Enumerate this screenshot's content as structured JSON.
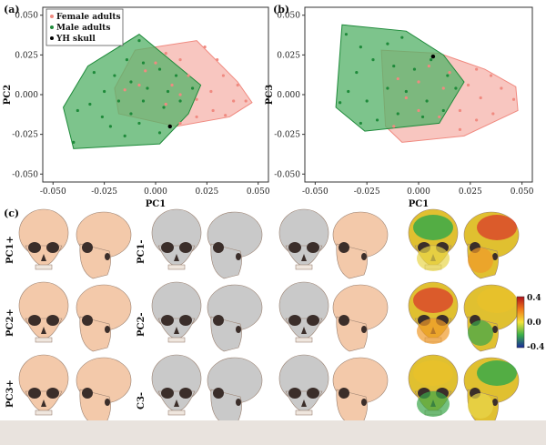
{
  "panels": {
    "a": "(a)",
    "b": "(b)",
    "c": "(c)"
  },
  "colors": {
    "female_fill": "#f6b8b0",
    "female_stroke": "#f08a80",
    "male_fill": "#58b46c",
    "male_stroke": "#1e8a3a",
    "yh": "#000000",
    "skull_peach": "#f3c9aa",
    "skull_gray": "#c9c9c9"
  },
  "chart_data": [
    {
      "type": "scatter",
      "id": "a",
      "xlabel": "PC1",
      "ylabel": "PC2",
      "xlim": [
        -0.055,
        0.055
      ],
      "ylim": [
        -0.055,
        0.055
      ],
      "xticks": [
        "-0.050",
        "-0.025",
        "0.000",
        "0.025",
        "0.050"
      ],
      "yticks": [
        "0.050",
        "0.025",
        "0.000",
        "-0.025",
        "-0.050"
      ],
      "legend": {
        "placement": "top-left",
        "entries": [
          "Female adults",
          "Male adults",
          "YH skull"
        ]
      },
      "series": [
        {
          "name": "Female adults",
          "hull": [
            [
              0.02,
              0.034
            ],
            [
              0.04,
              0.008
            ],
            [
              0.047,
              -0.005
            ],
            [
              0.036,
              -0.014
            ],
            [
              0.01,
              -0.02
            ],
            [
              -0.018,
              -0.012
            ],
            [
              -0.02,
              0.004
            ],
            [
              -0.01,
              0.028
            ]
          ],
          "points": [
            [
              0.024,
              0.03
            ],
            [
              0.03,
              0.022
            ],
            [
              0.033,
              0.012
            ],
            [
              0.04,
              0.006
            ],
            [
              0.038,
              -0.004
            ],
            [
              0.044,
              -0.004
            ],
            [
              0.028,
              -0.01
            ],
            [
              0.02,
              -0.014
            ],
            [
              0.012,
              -0.018
            ],
            [
              0.02,
              -0.003
            ],
            [
              0.027,
              0.002
            ],
            [
              0.016,
              0.012
            ],
            [
              0.012,
              0.022
            ],
            [
              0.005,
              0.026
            ],
            [
              0.0,
              0.02
            ],
            [
              -0.005,
              0.015
            ],
            [
              -0.008,
              0.006
            ],
            [
              -0.015,
              0.003
            ],
            [
              0.008,
              0.006
            ],
            [
              0.005,
              -0.006
            ],
            [
              0.012,
              0.0
            ],
            [
              0.034,
              -0.013
            ]
          ]
        },
        {
          "name": "Male adults",
          "hull": [
            [
              -0.008,
              0.038
            ],
            [
              0.022,
              0.006
            ],
            [
              0.016,
              -0.012
            ],
            [
              0.002,
              -0.031
            ],
            [
              -0.04,
              -0.034
            ],
            [
              -0.045,
              -0.008
            ],
            [
              -0.033,
              0.018
            ]
          ],
          "points": [
            [
              -0.008,
              0.034
            ],
            [
              -0.014,
              0.022
            ],
            [
              -0.006,
              0.02
            ],
            [
              0.002,
              0.016
            ],
            [
              -0.02,
              0.012
            ],
            [
              -0.012,
              0.008
            ],
            [
              -0.004,
              0.004
            ],
            [
              -0.025,
              0.002
            ],
            [
              -0.018,
              -0.004
            ],
            [
              -0.032,
              -0.006
            ],
            [
              -0.038,
              -0.01
            ],
            [
              -0.026,
              -0.014
            ],
            [
              -0.012,
              -0.012
            ],
            [
              0.004,
              -0.008
            ],
            [
              0.012,
              -0.004
            ],
            [
              0.018,
              0.004
            ],
            [
              0.01,
              0.012
            ],
            [
              -0.03,
              0.014
            ],
            [
              -0.022,
              -0.02
            ],
            [
              -0.008,
              -0.018
            ],
            [
              0.002,
              -0.024
            ],
            [
              -0.04,
              -0.03
            ],
            [
              -0.006,
              -0.004
            ],
            [
              0.006,
              0.002
            ],
            [
              -0.015,
              -0.026
            ]
          ]
        },
        {
          "name": "YH skull",
          "points": [
            [
              0.007,
              -0.02
            ]
          ]
        }
      ]
    },
    {
      "type": "scatter",
      "id": "b",
      "xlabel": "PC1",
      "ylabel": "PC3",
      "xlim": [
        -0.055,
        0.055
      ],
      "ylim": [
        -0.055,
        0.055
      ],
      "xticks": [
        "-0.050",
        "-0.025",
        "0.000",
        "0.025",
        "0.050"
      ],
      "yticks": [
        "0.050",
        "0.025",
        "0.000",
        "-0.025",
        "-0.050"
      ],
      "series": [
        {
          "name": "Female adults",
          "hull": [
            [
              -0.018,
              0.028
            ],
            [
              0.01,
              0.026
            ],
            [
              0.032,
              0.016
            ],
            [
              0.047,
              0.005
            ],
            [
              0.048,
              -0.01
            ],
            [
              0.022,
              -0.026
            ],
            [
              -0.008,
              -0.03
            ],
            [
              -0.016,
              -0.02
            ]
          ],
          "points": [
            [
              0.028,
              0.016
            ],
            [
              0.035,
              0.012
            ],
            [
              0.04,
              0.004
            ],
            [
              0.046,
              -0.003
            ],
            [
              0.03,
              -0.002
            ],
            [
              0.024,
              0.006
            ],
            [
              0.015,
              0.014
            ],
            [
              0.005,
              0.018
            ],
            [
              0.012,
              0.004
            ],
            [
              0.02,
              -0.01
            ],
            [
              0.028,
              -0.016
            ],
            [
              0.01,
              -0.014
            ],
            [
              0.0,
              -0.01
            ],
            [
              -0.006,
              -0.002
            ],
            [
              -0.01,
              0.01
            ],
            [
              0.0,
              0.008
            ],
            [
              0.02,
              -0.022
            ],
            [
              0.036,
              -0.012
            ],
            [
              -0.012,
              -0.02
            ]
          ]
        },
        {
          "name": "Male adults",
          "hull": [
            [
              -0.037,
              0.044
            ],
            [
              -0.006,
              0.04
            ],
            [
              0.012,
              0.025
            ],
            [
              0.022,
              0.008
            ],
            [
              0.01,
              -0.018
            ],
            [
              -0.026,
              -0.023
            ],
            [
              -0.04,
              -0.008
            ]
          ],
          "points": [
            [
              -0.035,
              0.038
            ],
            [
              -0.028,
              0.03
            ],
            [
              -0.015,
              0.032
            ],
            [
              -0.008,
              0.036
            ],
            [
              -0.022,
              0.022
            ],
            [
              -0.012,
              0.018
            ],
            [
              -0.002,
              0.016
            ],
            [
              0.006,
              0.022
            ],
            [
              0.014,
              0.012
            ],
            [
              0.018,
              0.004
            ],
            [
              -0.03,
              0.014
            ],
            [
              -0.034,
              0.002
            ],
            [
              -0.025,
              -0.004
            ],
            [
              -0.015,
              0.004
            ],
            [
              -0.006,
              0.002
            ],
            [
              0.004,
              -0.004
            ],
            [
              0.012,
              -0.01
            ],
            [
              -0.02,
              -0.016
            ],
            [
              -0.01,
              -0.012
            ],
            [
              -0.028,
              -0.018
            ],
            [
              0.002,
              -0.014
            ],
            [
              -0.038,
              -0.005
            ]
          ]
        },
        {
          "name": "YH skull",
          "points": [
            [
              0.007,
              0.024
            ]
          ]
        }
      ]
    }
  ],
  "c_rows": [
    "PC1+",
    "PC2+",
    "PC3+"
  ],
  "c_mid_rows": [
    "PC1-",
    "PC2-",
    "C3-"
  ],
  "colorbar": {
    "max": "0.4",
    "mid": "0.0",
    "min": "-0.4"
  }
}
